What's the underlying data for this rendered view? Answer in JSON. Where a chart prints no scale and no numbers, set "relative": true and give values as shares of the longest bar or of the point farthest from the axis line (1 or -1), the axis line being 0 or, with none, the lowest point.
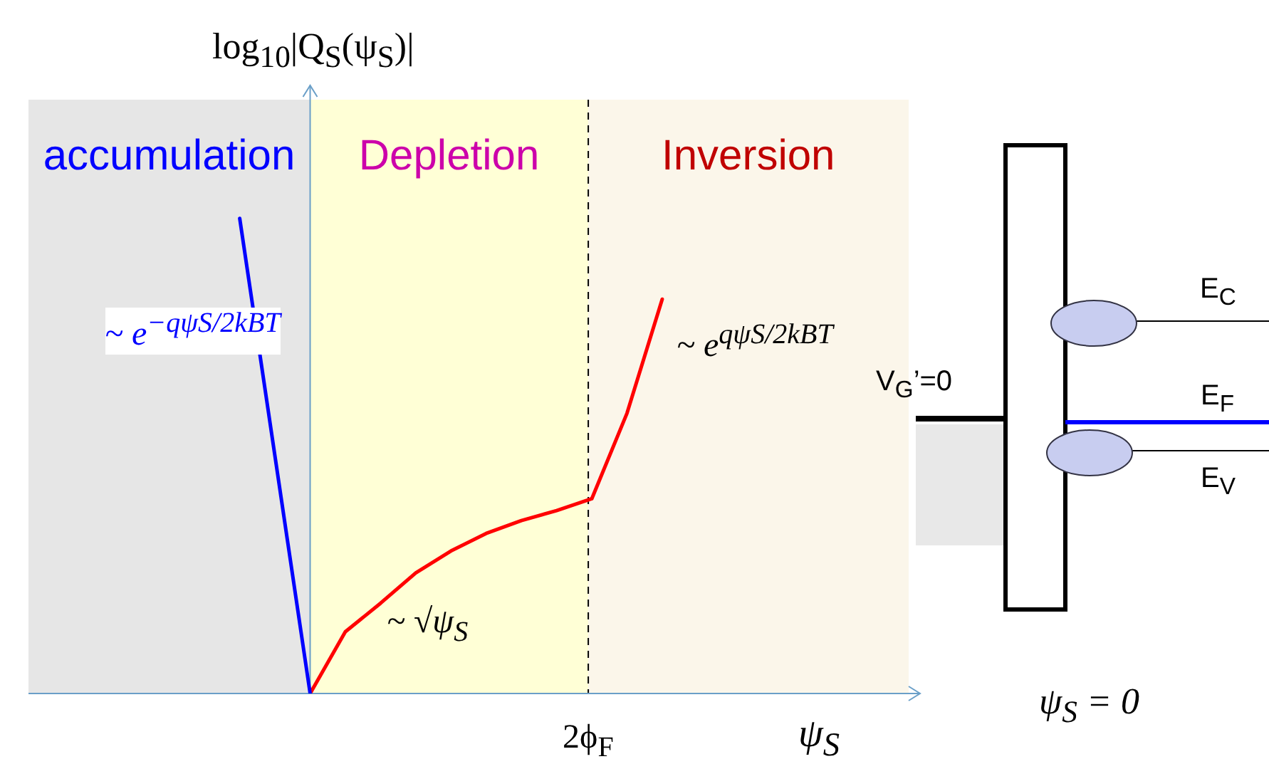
{
  "chart_data": [
    {
      "type": "line",
      "relative": true,
      "xlabel": "ψ$_{S}$",
      "ylabel": "log$_{10}$|Q$_{S}$(ψ$_{S}$)|",
      "categories": [
        null,
        null,
        null,
        null,
        null,
        null,
        null,
        null,
        null,
        null,
        null,
        null,
        null,
        null,
        null,
        null,
        null,
        null,
        null,
        null,
        null,
        null,
        null,
        null,
        null,
        null
      ],
      "series": [
        {
          "color": "#0000ff",
          "values": [
            null,
            null,
            null,
            null,
            null,
            null,
            1,
            0.5,
            0,
            null,
            null,
            null,
            null,
            null,
            null,
            null,
            null,
            null,
            null,
            null,
            null,
            null,
            null,
            null,
            null,
            null
          ]
        },
        {
          "color": "#ff0000",
          "values": [
            null,
            null,
            null,
            null,
            null,
            null,
            null,
            null,
            0,
            0.13,
            0.19,
            0.254,
            0.3,
            0.337,
            0.364,
            0.385,
            0.41,
            0.59,
            0.83,
            null,
            null,
            null,
            null,
            null,
            null,
            null
          ]
        }
      ],
      "annotations": [
        "accumulation",
        "Depletion",
        "Inversion",
        "2ϕ$_{F}$",
        "~ e$^{−qψS/2kBT}$",
        "~ √ψ$_{S}$",
        "~ e$^{qψS/2kBT}$"
      ],
      "legend": false,
      "line_style": "solid",
      "marker": "none"
    },
    {
      "type": "other",
      "annotations": [
        "V$_{G}$’=0",
        "E$_{C}$",
        "E$_{F}$",
        "E$_{V}$",
        "ψ$_{S}$ = 0"
      ]
    }
  ]
}
